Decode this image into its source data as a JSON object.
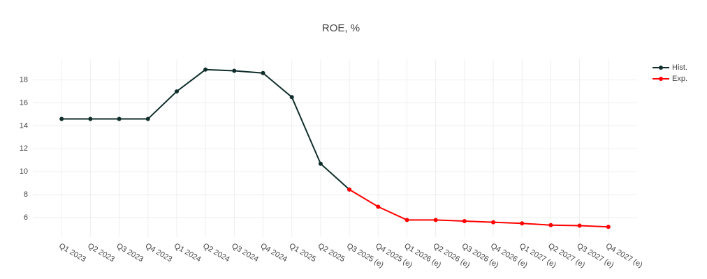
{
  "chart_data": {
    "type": "line",
    "title": "ROE, %",
    "categories": [
      "Q1 2023",
      "Q2 2023",
      "Q3 2023",
      "Q4 2023",
      "Q1 2024",
      "Q2 2024",
      "Q3 2024",
      "Q4 2024",
      "Q1 2025",
      "Q2 2025",
      "Q3 2025 (e)",
      "Q4 2025 (e)",
      "Q1 2026 (e)",
      "Q2 2026 (e)",
      "Q3 2026 (e)",
      "Q4 2026 (e)",
      "Q1 2027 (e)",
      "Q2 2027 (e)",
      "Q3 2027 (e)",
      "Q4 2027 (e)"
    ],
    "series": [
      {
        "name": "Hist.",
        "color": "#0f2d2a",
        "values": [
          14.6,
          14.6,
          14.6,
          14.6,
          17.0,
          18.9,
          18.8,
          18.6,
          16.5,
          10.7,
          8.45,
          null,
          null,
          null,
          null,
          null,
          null,
          null,
          null,
          null
        ]
      },
      {
        "name": "Exp.",
        "color": "#ff0000",
        "values": [
          null,
          null,
          null,
          null,
          null,
          null,
          null,
          null,
          null,
          null,
          8.45,
          6.95,
          5.8,
          5.8,
          5.7,
          5.6,
          5.5,
          5.35,
          5.3,
          5.2
        ]
      }
    ],
    "ylim": [
      4.3,
      19.8
    ],
    "yticks": [
      6,
      8,
      10,
      12,
      14,
      16,
      18
    ],
    "grid": true,
    "legend": "top-right"
  }
}
